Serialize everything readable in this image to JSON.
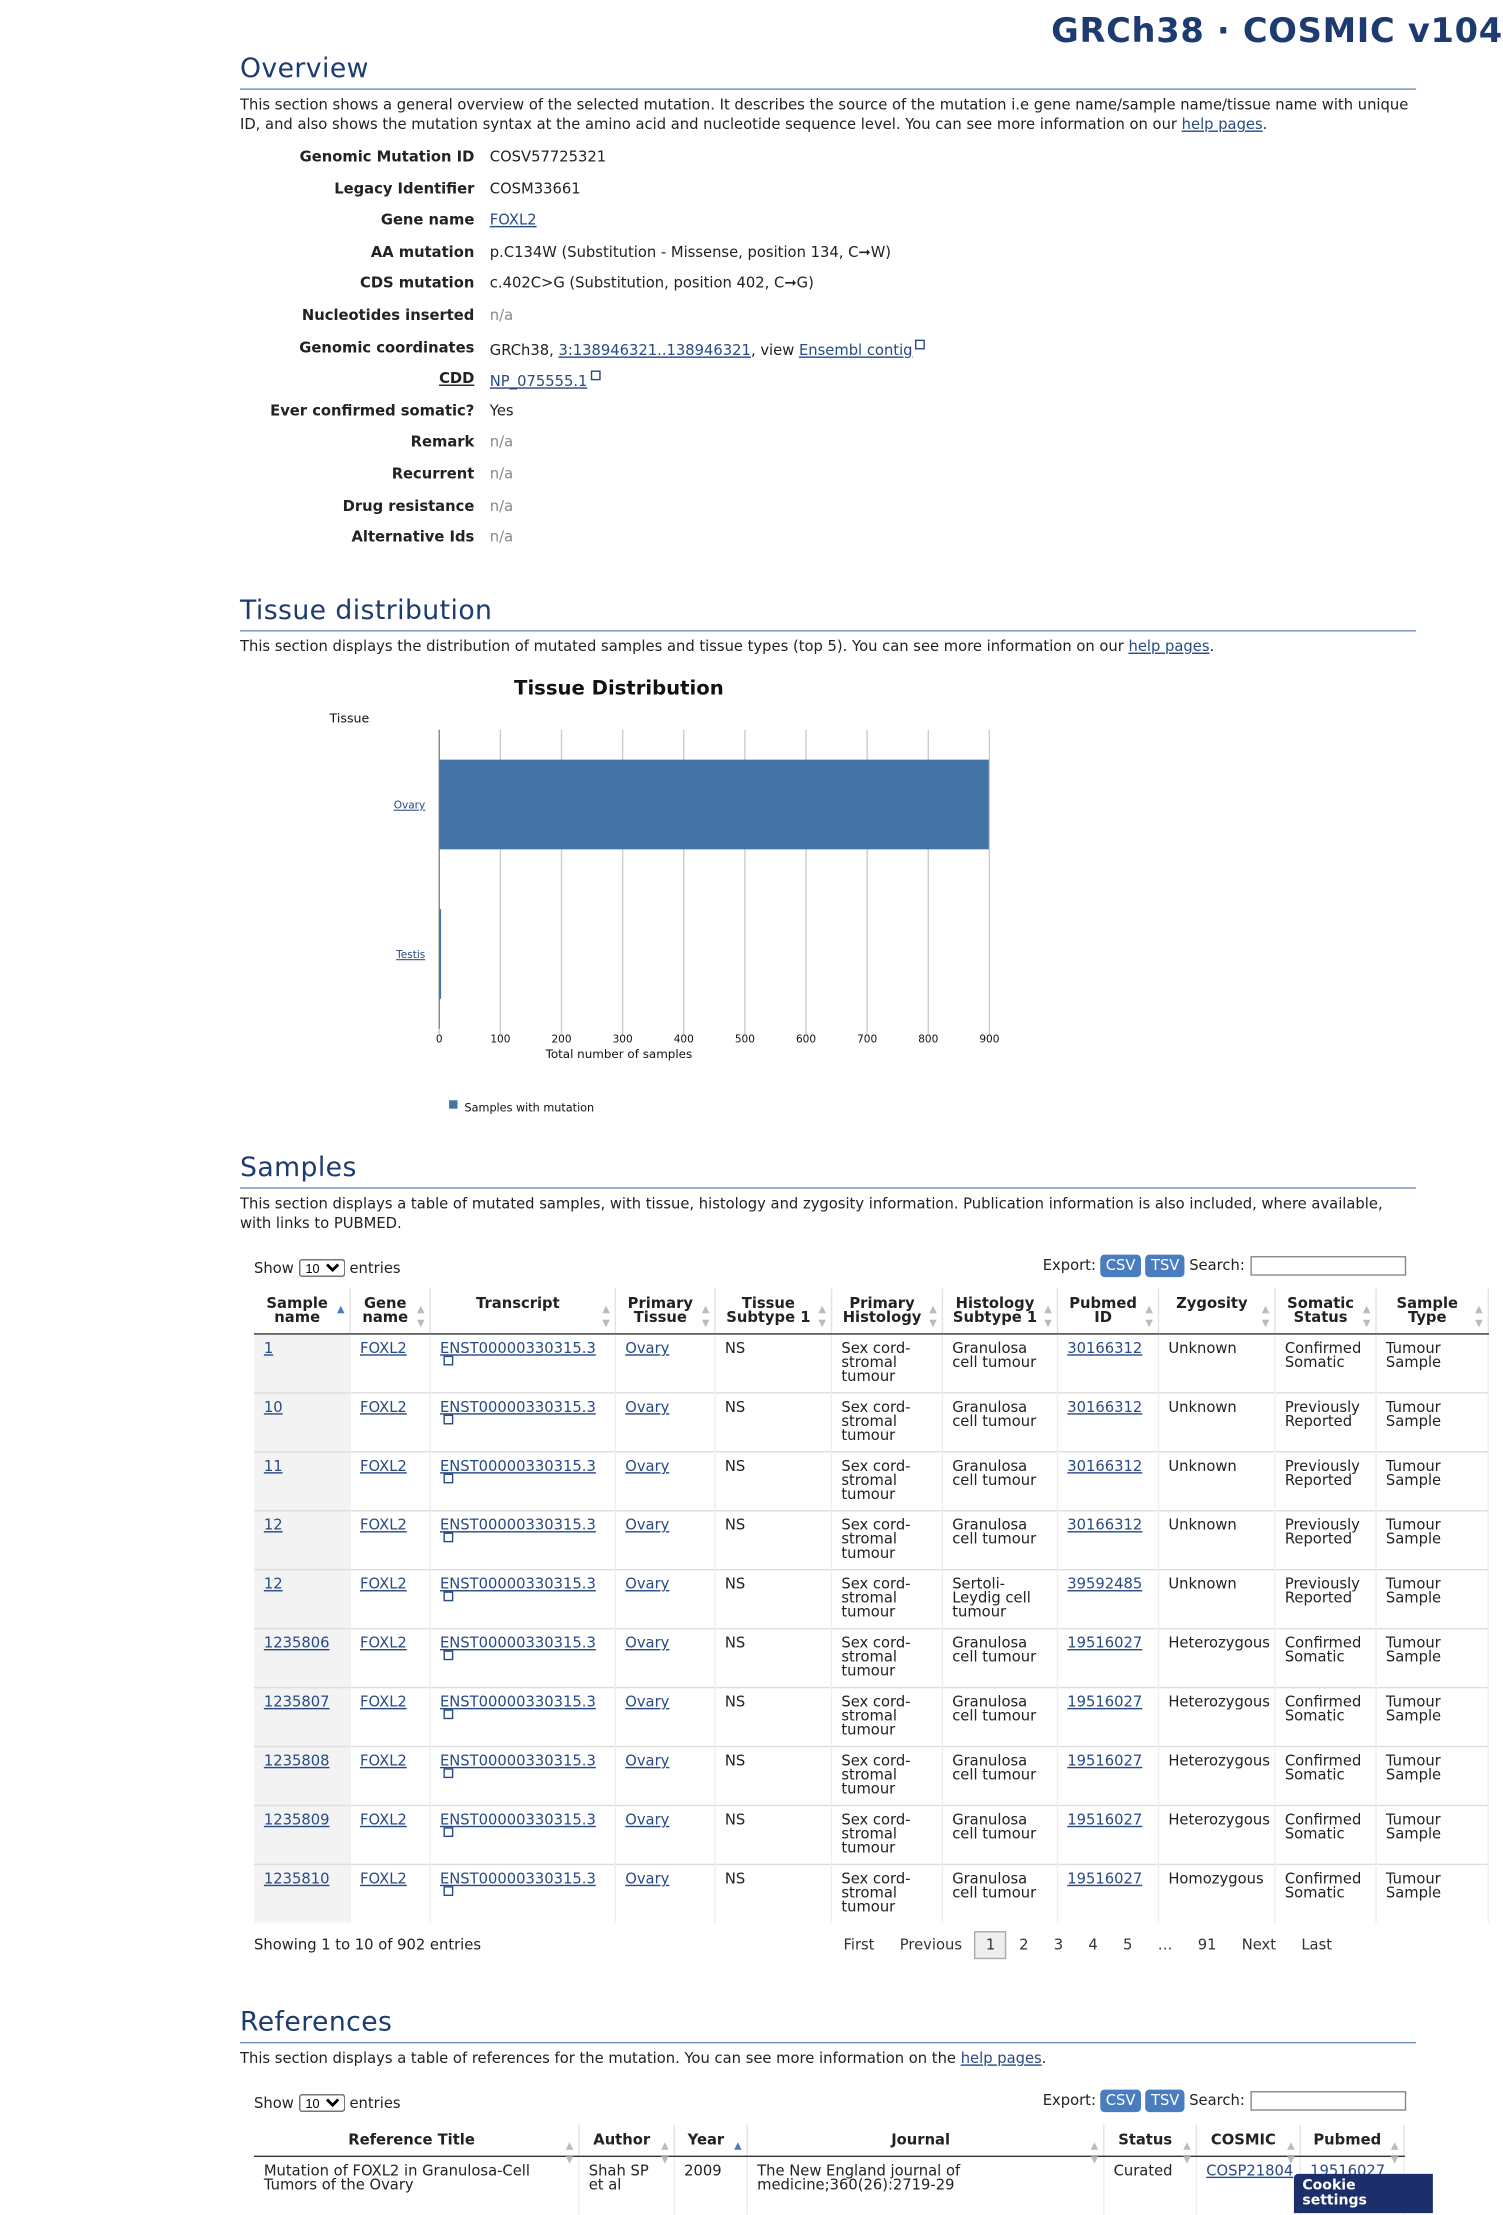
{
  "header": {
    "title": "GRCh38 · COSMIC v104"
  },
  "overview": {
    "heading": "Overview",
    "intro": [
      "This section shows a general overview of the selected mutation. It describes the source of the mutation i.e gene name/sample name/tissue name with unique ID, and also shows the mutation syntax at the amino acid and nucleotide sequence level. You can see more information on our ",
      {
        "link": "help pages"
      },
      "."
    ],
    "rows": [
      {
        "label": "Genomic Mutation ID",
        "value": [
          "COSV57725321"
        ]
      },
      {
        "label": "Legacy Identifier",
        "value": [
          "COSM33661"
        ]
      },
      {
        "label": "Gene name",
        "value": [
          {
            "link": "FOXL2"
          }
        ]
      },
      {
        "label": "AA mutation",
        "value": [
          "p.C134W (Substitution - Missense, position 134, C➞W)"
        ]
      },
      {
        "label": "CDS mutation",
        "value": [
          "c.402C>G (Substitution, position 402, C➞G)"
        ]
      },
      {
        "label": "Nucleotides inserted",
        "value": [
          {
            "muted": "n/a"
          }
        ]
      },
      {
        "label": "Genomic coordinates",
        "value": [
          "GRCh38, ",
          {
            "link": "3:138946321..138946321"
          },
          ", view ",
          {
            "link": "Ensembl contig",
            "external": true
          }
        ]
      },
      {
        "label": "CDD",
        "value": [
          {
            "link": "NP_075555.1",
            "external": true
          }
        ]
      },
      {
        "label": "Ever confirmed somatic?",
        "value": [
          "Yes"
        ]
      },
      {
        "label": "Remark",
        "value": [
          {
            "muted": "n/a"
          }
        ]
      },
      {
        "label": "Recurrent",
        "value": [
          {
            "muted": "n/a"
          }
        ]
      },
      {
        "label": "Drug resistance",
        "value": [
          {
            "muted": "n/a"
          }
        ]
      },
      {
        "label": "Alternative Ids",
        "value": [
          {
            "muted": "n/a"
          }
        ]
      }
    ]
  },
  "tissue": {
    "heading": "Tissue distribution",
    "intro": [
      "This section displays the distribution of mutated samples and tissue types (top 5). You can see more information on our ",
      {
        "link": "help pages"
      },
      "."
    ]
  },
  "chart_data": {
    "type": "bar",
    "orientation": "horizontal",
    "title": "Tissue Distribution",
    "y_label": "Tissue",
    "x_label": "Total number of samples",
    "categories": [
      "Ovary",
      "Testis"
    ],
    "series": [
      {
        "name": "Samples with mutation",
        "color": "#4473a8",
        "values": [
          899,
          3
        ]
      }
    ],
    "xlim": [
      0,
      900
    ],
    "xticks": [
      0,
      100,
      200,
      300,
      400,
      500,
      600,
      700,
      800,
      900
    ],
    "grid": true,
    "legend": "bottom"
  },
  "samples": {
    "heading": "Samples",
    "intro": [
      "This section displays a table of mutated samples, with tissue, histology and zygosity information. Publication information is also included, where available, with links to PUBMED."
    ],
    "show": "Show",
    "page_size": "10",
    "entries": "entries",
    "export": "Export:",
    "csv": "CSV",
    "tsv": "TSV",
    "search": "Search:",
    "columns": [
      "Sample name",
      "Gene name",
      "Transcript",
      "Primary Tissue",
      "Tissue Subtype 1",
      "Primary Histology",
      "Histology Subtype 1",
      "Pubmed ID",
      "Zygosity",
      "Somatic Status",
      "Sample Type"
    ],
    "rows": [
      [
        "1",
        "FOXL2",
        "ENST00000330315.3",
        "Ovary",
        "NS",
        "Sex cord-stromal tumour",
        "Granulosa cell tumour",
        "30166312",
        "Unknown",
        "Confirmed Somatic",
        "Tumour Sample"
      ],
      [
        "10",
        "FOXL2",
        "ENST00000330315.3",
        "Ovary",
        "NS",
        "Sex cord-stromal tumour",
        "Granulosa cell tumour",
        "30166312",
        "Unknown",
        "Previously Reported",
        "Tumour Sample"
      ],
      [
        "11",
        "FOXL2",
        "ENST00000330315.3",
        "Ovary",
        "NS",
        "Sex cord-stromal tumour",
        "Granulosa cell tumour",
        "30166312",
        "Unknown",
        "Previously Reported",
        "Tumour Sample"
      ],
      [
        "12",
        "FOXL2",
        "ENST00000330315.3",
        "Ovary",
        "NS",
        "Sex cord-stromal tumour",
        "Granulosa cell tumour",
        "30166312",
        "Unknown",
        "Previously Reported",
        "Tumour Sample"
      ],
      [
        "12",
        "FOXL2",
        "ENST00000330315.3",
        "Ovary",
        "NS",
        "Sex cord-stromal tumour",
        "Sertoli-Leydig cell tumour",
        "39592485",
        "Unknown",
        "Previously Reported",
        "Tumour Sample"
      ],
      [
        "1235806",
        "FOXL2",
        "ENST00000330315.3",
        "Ovary",
        "NS",
        "Sex cord-stromal tumour",
        "Granulosa cell tumour",
        "19516027",
        "Heterozygous",
        "Confirmed Somatic",
        "Tumour Sample"
      ],
      [
        "1235807",
        "FOXL2",
        "ENST00000330315.3",
        "Ovary",
        "NS",
        "Sex cord-stromal tumour",
        "Granulosa cell tumour",
        "19516027",
        "Heterozygous",
        "Confirmed Somatic",
        "Tumour Sample"
      ],
      [
        "1235808",
        "FOXL2",
        "ENST00000330315.3",
        "Ovary",
        "NS",
        "Sex cord-stromal tumour",
        "Granulosa cell tumour",
        "19516027",
        "Heterozygous",
        "Confirmed Somatic",
        "Tumour Sample"
      ],
      [
        "1235809",
        "FOXL2",
        "ENST00000330315.3",
        "Ovary",
        "NS",
        "Sex cord-stromal tumour",
        "Granulosa cell tumour",
        "19516027",
        "Heterozygous",
        "Confirmed Somatic",
        "Tumour Sample"
      ],
      [
        "1235810",
        "FOXL2",
        "ENST00000330315.3",
        "Ovary",
        "NS",
        "Sex cord-stromal tumour",
        "Granulosa cell tumour",
        "19516027",
        "Homozygous",
        "Confirmed Somatic",
        "Tumour Sample"
      ]
    ],
    "info": "Showing 1 to 10 of 902 entries",
    "pages": [
      "First",
      "Previous",
      "1",
      "2",
      "3",
      "4",
      "5",
      "…",
      "91",
      "Next",
      "Last"
    ]
  },
  "references": {
    "heading": "References",
    "intro": [
      "This section displays a table of references for the mutation. You can see more information on the ",
      {
        "link": "help pages"
      },
      "."
    ],
    "show": "Show",
    "page_size": "10",
    "entries": "entries",
    "export": "Export:",
    "csv": "CSV",
    "tsv": "TSV",
    "search": "Search:",
    "columns": [
      "Reference Title",
      "Author",
      "Year",
      "Journal",
      "Status",
      "COSMIC",
      "Pubmed"
    ],
    "rows": [
      [
        "Mutation of FOXL2 in Granulosa-Cell Tumors of the Ovary",
        "Shah SP et al",
        "2009",
        "The New England journal of medicine;360(26):2719-29",
        "Curated",
        "COSP21804",
        "19516027"
      ]
    ]
  },
  "cookie": "Cookie settings"
}
